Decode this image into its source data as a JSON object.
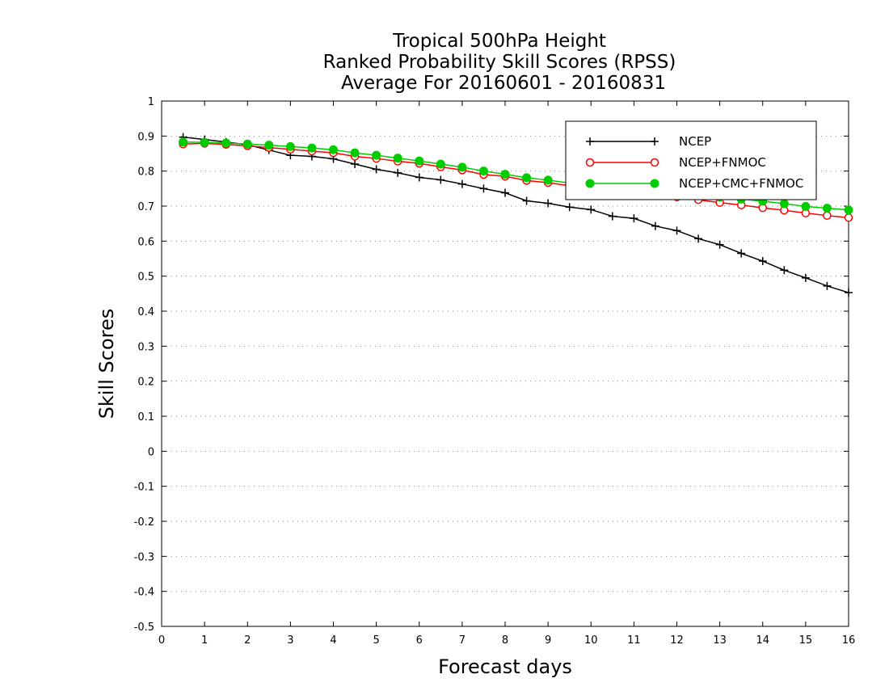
{
  "chart_data": {
    "type": "line",
    "title_lines": [
      "Tropical 500hPa Height",
      "Ranked Probability Skill Scores (RPSS)",
      "Average For 20160601 - 20160831"
    ],
    "xlabel": "Forecast days",
    "ylabel": "Skill Scores",
    "xlim": [
      0,
      16
    ],
    "ylim": [
      -0.5,
      1
    ],
    "x_ticks": [
      0,
      1,
      2,
      3,
      4,
      5,
      6,
      7,
      8,
      9,
      10,
      11,
      12,
      13,
      14,
      15,
      16
    ],
    "y_ticks": [
      -0.5,
      -0.4,
      -0.3,
      -0.2,
      -0.1,
      0,
      0.1,
      0.2,
      0.3,
      0.4,
      0.5,
      0.6,
      0.7,
      0.8,
      0.9,
      1
    ],
    "y_tick_labels": [
      "-0.5",
      "-0.4",
      "-0.3",
      "-0.2",
      "-0.1",
      "0",
      "0.1",
      "0.2",
      "0.3",
      "0.4",
      "0.5",
      "0.6",
      "0.7",
      "0.8",
      "0.9",
      "1"
    ],
    "grid": "horizontal dotted",
    "legend_position": "top-right",
    "x": [
      0.5,
      1,
      1.5,
      2,
      2.5,
      3,
      3.5,
      4,
      4.5,
      5,
      5.5,
      6,
      6.5,
      7,
      7.5,
      8,
      8.5,
      9,
      9.5,
      10,
      10.5,
      11,
      11.5,
      12,
      12.5,
      13,
      13.5,
      14,
      14.5,
      15,
      15.5,
      16
    ],
    "series": [
      {
        "name": "NCEP",
        "color": "#000000",
        "marker": "plus",
        "values": [
          0.897,
          0.89,
          0.883,
          0.875,
          0.86,
          0.845,
          0.842,
          0.835,
          0.82,
          0.805,
          0.795,
          0.782,
          0.775,
          0.763,
          0.75,
          0.738,
          0.715,
          0.708,
          0.697,
          0.69,
          0.671,
          0.665,
          0.643,
          0.63,
          0.607,
          0.59,
          0.565,
          0.543,
          0.517,
          0.495,
          0.472,
          0.453
        ]
      },
      {
        "name": "NCEP+FNMOC",
        "color": "#ff0000",
        "marker": "open-circle",
        "values": [
          0.877,
          0.879,
          0.876,
          0.872,
          0.867,
          0.862,
          0.857,
          0.852,
          0.842,
          0.836,
          0.828,
          0.822,
          0.812,
          0.803,
          0.79,
          0.785,
          0.773,
          0.767,
          0.758,
          0.75,
          0.745,
          0.738,
          0.73,
          0.726,
          0.718,
          0.71,
          0.703,
          0.695,
          0.688,
          0.68,
          0.673,
          0.667
        ]
      },
      {
        "name": "NCEP+CMC+FNMOC",
        "color": "#00cc00",
        "marker": "filled-circle",
        "values": [
          0.883,
          0.882,
          0.88,
          0.877,
          0.874,
          0.87,
          0.866,
          0.861,
          0.852,
          0.845,
          0.837,
          0.829,
          0.82,
          0.811,
          0.8,
          0.791,
          0.781,
          0.774,
          0.766,
          0.759,
          0.753,
          0.747,
          0.74,
          0.736,
          0.731,
          0.726,
          0.72,
          0.714,
          0.707,
          0.699,
          0.694,
          0.689
        ]
      }
    ]
  }
}
